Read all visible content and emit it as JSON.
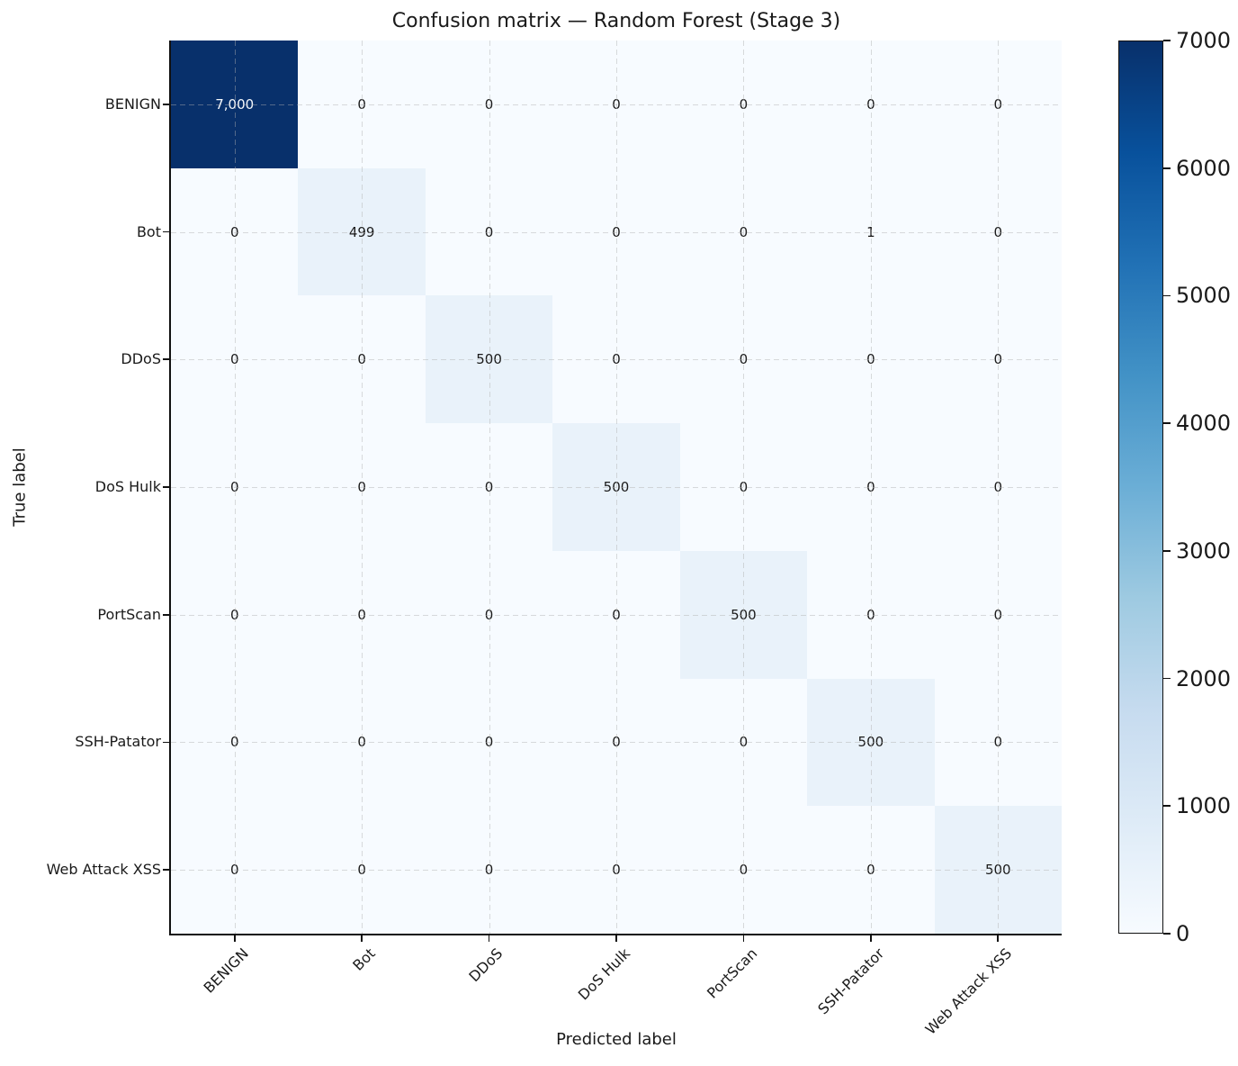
{
  "title": "Confusion matrix — Random Forest (Stage 3)",
  "chart_data": {
    "type": "heatmap",
    "title": "Confusion matrix — Random Forest (Stage 3)",
    "xlabel": "Predicted label",
    "ylabel": "True label",
    "categories": [
      "BENIGN",
      "Bot",
      "DDoS",
      "DoS Hulk",
      "PortScan",
      "SSH-Patator",
      "Web Attack XSS"
    ],
    "matrix": [
      [
        7000,
        0,
        0,
        0,
        0,
        0,
        0
      ],
      [
        0,
        499,
        0,
        0,
        0,
        1,
        0
      ],
      [
        0,
        0,
        500,
        0,
        0,
        0,
        0
      ],
      [
        0,
        0,
        0,
        500,
        0,
        0,
        0
      ],
      [
        0,
        0,
        0,
        0,
        500,
        0,
        0
      ],
      [
        0,
        0,
        0,
        0,
        0,
        500,
        0
      ],
      [
        0,
        0,
        0,
        0,
        0,
        0,
        500
      ]
    ],
    "grid": "dashed",
    "colorbar": {
      "min": 0,
      "max": 7000,
      "ticks": [
        0,
        1000,
        2000,
        3000,
        4000,
        5000,
        6000,
        7000
      ],
      "position": "right"
    },
    "colormap": {
      "name": "Blues",
      "stops": [
        "#f7fbff",
        "#deebf7",
        "#c6dbef",
        "#9ecae1",
        "#6baed6",
        "#4292c6",
        "#2171b5",
        "#08519c",
        "#08306b"
      ]
    },
    "value_text_color_dark": "#1a1a1a",
    "value_text_color_light": "#f5f8fc"
  }
}
